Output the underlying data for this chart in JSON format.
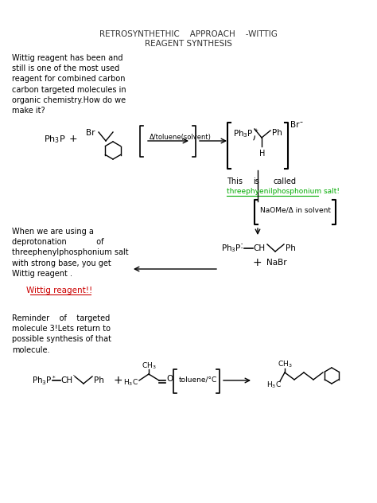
{
  "title_line1": "RETROSYNTHETHIC    APPROACH    -WITTIG",
  "title_line2": "REAGENT SYNTHESIS",
  "bg_color": "#ffffff",
  "text_color": "#000000",
  "green_color": "#00aa00",
  "red_color": "#cc0000",
  "para1": "Wittig reagent has been and\nstill is one of the most used\nreagent for combined carbon\ncarbon targeted molecules in\norganic chemistry.How do we\nmake it?",
  "para2": "When we are using a\ndeprotonation            of\nthreephenylphosphonium salt\nwith strong base, you get\nWittig reagent .",
  "para3": "Reminder    of    targeted\nmolecule 3!Lets return to\npossible synthesis of that\nmolecule.",
  "wittig_label": "Wittig reagent!!",
  "green_label": "threephyenilphosphonium salt!"
}
